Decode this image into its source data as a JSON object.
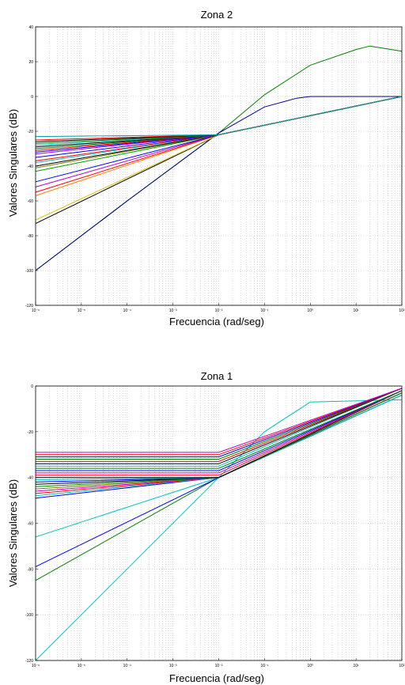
{
  "chart_data": [
    {
      "type": "line",
      "title": "Zona 2",
      "xlabel": "Frecuencia (rad/seg)",
      "ylabel": "Valores Singulares (dB)",
      "xscale": "log",
      "xlim": [
        1e-06,
        100
      ],
      "ylim": [
        -120,
        40
      ],
      "x_ticks": [
        "10⁻⁶",
        "10⁻⁵",
        "10⁻⁴",
        "10⁻³",
        "10⁻²",
        "10⁻¹",
        "10⁰",
        "10¹",
        "10²"
      ],
      "y_ticks": [
        "-120",
        "-100",
        "-80",
        "-60",
        "-40",
        "-20",
        "0",
        "20",
        "40"
      ],
      "grid": true,
      "legend": "none",
      "series": [
        {
          "color": "#008000",
          "values_x": [
            1e-06,
            0.0001,
            0.01,
            0.1,
            1,
            10,
            20,
            100
          ],
          "values_y": [
            -100,
            -60,
            -21,
            1,
            18,
            27,
            29,
            26
          ]
        },
        {
          "color": "#00008b",
          "values_x": [
            1e-06,
            0.0001,
            0.01,
            0.1,
            0.5,
            1,
            100
          ],
          "values_y": [
            -100,
            -60,
            -21,
            -6,
            -1,
            0,
            0
          ]
        },
        {
          "color": "#000000",
          "values_x": [
            1e-06,
            0.01,
            100
          ],
          "values_y": [
            -73,
            -22,
            0
          ]
        },
        {
          "color": "#e0c000",
          "values_x": [
            1e-06,
            0.01,
            100
          ],
          "values_y": [
            -71,
            -22,
            0
          ]
        },
        {
          "color": "#ff8000",
          "values_x": [
            1e-06,
            0.01,
            100
          ],
          "values_y": [
            -57,
            -22,
            0
          ]
        },
        {
          "color": "#ff0000",
          "values_x": [
            1e-06,
            0.01,
            100
          ],
          "values_y": [
            -55,
            -22,
            0
          ]
        },
        {
          "color": "#c000c0",
          "values_x": [
            1e-06,
            0.01,
            100
          ],
          "values_y": [
            -52,
            -22,
            0
          ]
        },
        {
          "color": "#0000ff",
          "values_x": [
            1e-06,
            0.01,
            100
          ],
          "values_y": [
            -49,
            -22,
            0
          ]
        },
        {
          "color": "#00a000",
          "values_x": [
            1e-06,
            0.01,
            100
          ],
          "values_y": [
            -43,
            -22,
            0
          ]
        },
        {
          "color": "#808000",
          "values_x": [
            1e-06,
            0.01,
            100
          ],
          "values_y": [
            -41,
            -22,
            0
          ]
        },
        {
          "color": "#000000",
          "values_x": [
            1e-06,
            0.01,
            100
          ],
          "values_y": [
            -40,
            -22,
            0
          ]
        },
        {
          "color": "#00c0c0",
          "values_x": [
            1e-06,
            0.01,
            100
          ],
          "values_y": [
            -38,
            -22,
            0
          ]
        },
        {
          "color": "#ff0000",
          "values_x": [
            1e-06,
            0.01,
            100
          ],
          "values_y": [
            -37,
            -22,
            0
          ]
        },
        {
          "color": "#0000ff",
          "values_x": [
            1e-06,
            0.01,
            100
          ],
          "values_y": [
            -35,
            -22,
            0
          ]
        },
        {
          "color": "#c000c0",
          "values_x": [
            1e-06,
            0.01,
            100
          ],
          "values_y": [
            -33,
            -22,
            0
          ]
        },
        {
          "color": "#0000ff",
          "values_x": [
            1e-06,
            0.01,
            100
          ],
          "values_y": [
            -32,
            -22,
            0
          ]
        },
        {
          "color": "#ff0000",
          "values_x": [
            1e-06,
            0.01,
            100
          ],
          "values_y": [
            -31,
            -22,
            0
          ]
        },
        {
          "color": "#008000",
          "values_x": [
            1e-06,
            0.01,
            100
          ],
          "values_y": [
            -30,
            -22,
            0
          ]
        },
        {
          "color": "#000000",
          "values_x": [
            1e-06,
            0.01,
            100
          ],
          "values_y": [
            -29,
            -22,
            0
          ]
        },
        {
          "color": "#00c0c0",
          "values_x": [
            1e-06,
            0.01,
            100
          ],
          "values_y": [
            -28,
            -22,
            0
          ]
        },
        {
          "color": "#008000",
          "values_x": [
            1e-06,
            0.01,
            100
          ],
          "values_y": [
            -27,
            -22,
            0
          ]
        },
        {
          "color": "#000000",
          "values_x": [
            1e-06,
            0.01,
            100
          ],
          "values_y": [
            -26,
            -22,
            0
          ]
        },
        {
          "color": "#ff0000",
          "values_x": [
            1e-06,
            0.01,
            100
          ],
          "values_y": [
            -25,
            -22,
            0
          ]
        },
        {
          "color": "#00a0a0",
          "values_x": [
            1e-06,
            0.01,
            100
          ],
          "values_y": [
            -23,
            -22,
            0
          ]
        }
      ]
    },
    {
      "type": "line",
      "title": "Zona 1",
      "xlabel": "Frecuencia (rad/seg)",
      "ylabel": "Valores Singulares (dB)",
      "xscale": "log",
      "xlim": [
        1e-06,
        100
      ],
      "ylim": [
        -120,
        0
      ],
      "x_ticks": [
        "10⁻⁶",
        "10⁻⁵",
        "10⁻⁴",
        "10⁻³",
        "10⁻²",
        "10⁻¹",
        "10⁰",
        "10¹",
        "10²"
      ],
      "y_ticks": [
        "-120",
        "-100",
        "-80",
        "-60",
        "-40",
        "-20",
        "0"
      ],
      "grid": true,
      "legend": "none",
      "series": [
        {
          "color": "#00c0c0",
          "values_x": [
            1e-06,
            0.0001,
            0.01,
            0.1,
            1,
            100
          ],
          "values_y": [
            -120,
            -80,
            -40,
            -20,
            -7,
            -6
          ]
        },
        {
          "color": "#008000",
          "values_x": [
            1e-06,
            0.01,
            100
          ],
          "values_y": [
            -85,
            -40,
            -4
          ]
        },
        {
          "color": "#0000ff",
          "values_x": [
            1e-06,
            0.01,
            100
          ],
          "values_y": [
            -79,
            -40,
            -4
          ]
        },
        {
          "color": "#00c0c0",
          "values_x": [
            1e-06,
            0.01,
            100
          ],
          "values_y": [
            -66,
            -40,
            -4
          ]
        },
        {
          "color": "#0000ff",
          "values_x": [
            1e-06,
            0.01,
            100
          ],
          "values_y": [
            -49,
            -40,
            -3
          ]
        },
        {
          "color": "#00c0c0",
          "values_x": [
            1e-06,
            0.01,
            100
          ],
          "values_y": [
            -48,
            -40,
            -3
          ]
        },
        {
          "color": "#ff0000",
          "values_x": [
            1e-06,
            0.01,
            100
          ],
          "values_y": [
            -47,
            -40,
            -3
          ]
        },
        {
          "color": "#c000c0",
          "values_x": [
            1e-06,
            0.01,
            100
          ],
          "values_y": [
            -46,
            -40,
            -3
          ]
        },
        {
          "color": "#808000",
          "values_x": [
            1e-06,
            0.01,
            100
          ],
          "values_y": [
            -45,
            -40,
            -3
          ]
        },
        {
          "color": "#008000",
          "values_x": [
            1e-06,
            0.01,
            100
          ],
          "values_y": [
            -44,
            -40,
            -3
          ]
        },
        {
          "color": "#000000",
          "values_x": [
            1e-06,
            0.01,
            100
          ],
          "values_y": [
            -43,
            -40,
            -2
          ]
        },
        {
          "color": "#0000ff",
          "values_x": [
            1e-06,
            0.01,
            100
          ],
          "values_y": [
            -42,
            -40,
            -2
          ]
        },
        {
          "color": "#00c0c0",
          "values_x": [
            1e-06,
            0.01,
            100
          ],
          "values_y": [
            -41,
            -40,
            -2
          ]
        },
        {
          "color": "#000000",
          "values_x": [
            1e-06,
            0.01,
            100
          ],
          "values_y": [
            -40,
            -40,
            -2
          ]
        },
        {
          "color": "#ff0000",
          "values_x": [
            1e-06,
            0.01,
            100
          ],
          "values_y": [
            -39,
            -39,
            -2
          ]
        },
        {
          "color": "#c000c0",
          "values_x": [
            1e-06,
            0.01,
            100
          ],
          "values_y": [
            -38,
            -38,
            -2
          ]
        },
        {
          "color": "#0000ff",
          "values_x": [
            1e-06,
            0.01,
            100
          ],
          "values_y": [
            -37,
            -37,
            -2
          ]
        },
        {
          "color": "#008000",
          "values_x": [
            1e-06,
            0.01,
            100
          ],
          "values_y": [
            -36,
            -36,
            -2
          ]
        },
        {
          "color": "#00c0c0",
          "values_x": [
            1e-06,
            0.01,
            100
          ],
          "values_y": [
            -35,
            -35,
            -1
          ]
        },
        {
          "color": "#000000",
          "values_x": [
            1e-06,
            0.01,
            100
          ],
          "values_y": [
            -34,
            -34,
            -1
          ]
        },
        {
          "color": "#ff0000",
          "values_x": [
            1e-06,
            0.01,
            100
          ],
          "values_y": [
            -33,
            -33,
            -1
          ]
        },
        {
          "color": "#008000",
          "values_x": [
            1e-06,
            0.01,
            100
          ],
          "values_y": [
            -32,
            -32,
            -1
          ]
        },
        {
          "color": "#0000ff",
          "values_x": [
            1e-06,
            0.01,
            100
          ],
          "values_y": [
            -31,
            -31,
            -1
          ]
        },
        {
          "color": "#ff0000",
          "values_x": [
            1e-06,
            0.01,
            100
          ],
          "values_y": [
            -30,
            -30,
            -1
          ]
        },
        {
          "color": "#c000c0",
          "values_x": [
            1e-06,
            0.01,
            100
          ],
          "values_y": [
            -29,
            -29,
            -1
          ]
        }
      ]
    }
  ]
}
